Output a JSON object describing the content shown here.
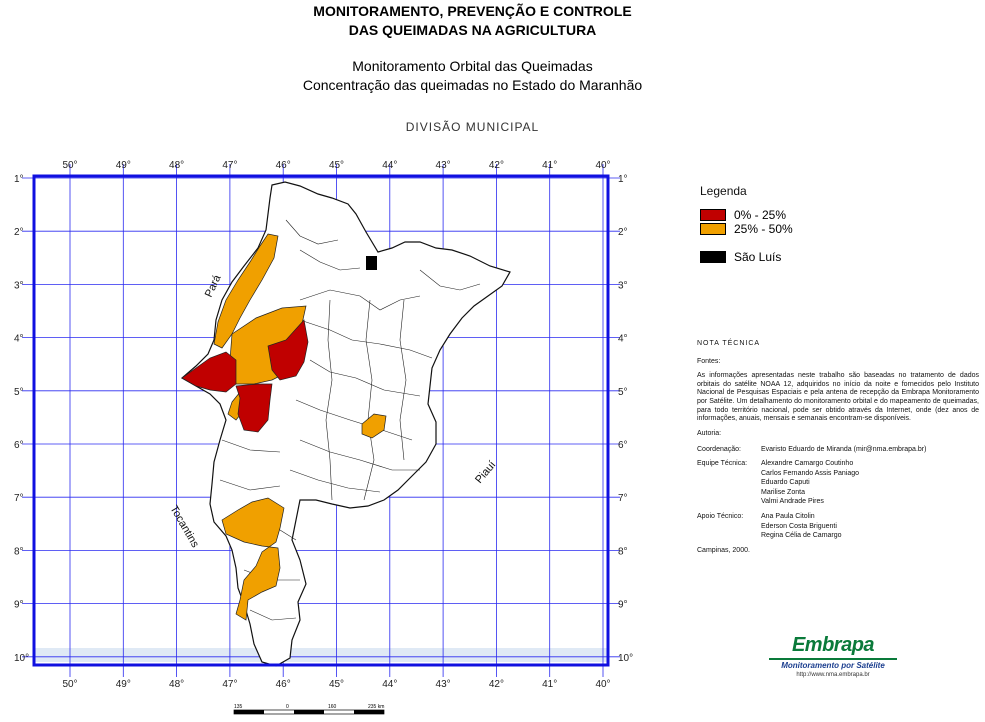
{
  "header": {
    "title_line1": "MONITORAMENTO, PREVENÇÃO E CONTROLE",
    "title_line2": "DAS QUEIMADAS NA AGRICULTURA",
    "subtitle_line1": "Monitoramento Orbital das Queimadas",
    "subtitle_line2": "Concentração das queimadas no Estado do Maranhão",
    "map_caption": "DIVISÃO MUNICIPAL"
  },
  "map": {
    "longitudes": [
      "50°",
      "49°",
      "48°",
      "47°",
      "46°",
      "45°",
      "44°",
      "43°",
      "42°",
      "41°",
      "40°"
    ],
    "latitudes": [
      "1°",
      "2°",
      "3°",
      "4°",
      "5°",
      "6°",
      "7°",
      "8°",
      "9°",
      "10°"
    ],
    "neighbor_labels": {
      "para": "Pará",
      "piaui": "Piauí",
      "tocantins": "Tocantins"
    },
    "colors": {
      "frame": "#1010e0",
      "grid": "#2a2af0",
      "red": "#c00000",
      "orange": "#f0a000",
      "capital": "#000000",
      "outline": "#111111"
    }
  },
  "legend": {
    "title": "Legenda",
    "items": [
      {
        "label": "0% - 25%",
        "color": "#c00000"
      },
      {
        "label": "25% - 50%",
        "color": "#f0a000"
      },
      {
        "label": "São Luís",
        "color": "#000000"
      }
    ]
  },
  "notes": {
    "heading": "NOTA TÉCNICA",
    "fontes_label": "Fontes:",
    "fontes_text": "As informações apresentadas neste trabalho são baseadas no tratamento de dados orbitais do satélite NOAA 12, adquiridos no início da noite e fornecidos pelo Instituto Nacional de Pesquisas Espaciais e pela antena de recepção da Embrapa Monitoramento por Satélite. Um detalhamento do monitoramento orbital e do mapeamento de queimadas, para todo território nacional, pode ser obtido através da Internet, onde (dez anos de informações, anuais, mensais e semanais encontram-se disponíveis.",
    "autoria_label": "Autoria:",
    "coordenacao_label": "Coordenação:",
    "coordenacao_value": "Evaristo Eduardo de Miranda (mir@nma.embrapa.br)",
    "equipe_label": "Equipe Técnica:",
    "equipe": [
      "Alexandre Camargo Coutinho",
      "Carlos Fernando Assis Paniago",
      "Eduardo Caputi",
      "Marilise Zonta",
      "Valmi Andrade Pires"
    ],
    "apoio_label": "Apoio Técnico:",
    "apoio": [
      "Ana Paula Citolin",
      "Ederson Costa Briguenti",
      "Regina Célia de Camargo"
    ],
    "place_date": "Campinas, 2000."
  },
  "logo": {
    "name": "Embrapa",
    "subtitle": "Monitoramento por Satélite",
    "url": "http://www.nma.embrapa.br"
  },
  "scale": {
    "labels": [
      "135",
      "0",
      "160",
      "235 km"
    ]
  }
}
